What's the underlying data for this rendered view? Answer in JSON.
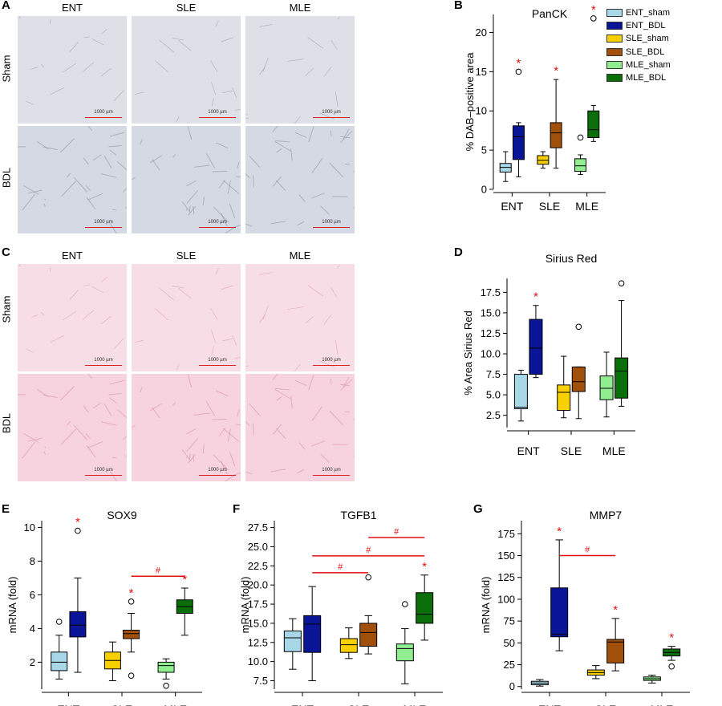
{
  "panel_labels": [
    "A",
    "B",
    "C",
    "D",
    "E",
    "F",
    "G"
  ],
  "histology_A": {
    "columns": [
      "ENT",
      "SLE",
      "MLE"
    ],
    "rows": [
      "Sham",
      "BDL"
    ],
    "scale_text": "1000 µm",
    "colors": {
      "sham": "#dde0e6",
      "bdl": "#d5d9e3"
    }
  },
  "histology_C": {
    "columns": [
      "ENT",
      "SLE",
      "MLE"
    ],
    "rows": [
      "Sham",
      "BDL"
    ],
    "scale_text": "1000 µm",
    "colors": {
      "sham": "#f7dde6",
      "bdl": "#f6d3df"
    }
  },
  "legend": {
    "items": [
      {
        "label": "ENT_sham",
        "color": "#a8d8e8"
      },
      {
        "label": "ENT_BDL",
        "color": "#0a1496"
      },
      {
        "label": "SLE_sham",
        "color": "#f8d000"
      },
      {
        "label": "SLE_BDL",
        "color": "#a0500a"
      },
      {
        "label": "MLE_sham",
        "color": "#90ee90"
      },
      {
        "label": "MLE_BDL",
        "color": "#0a6e0a"
      }
    ]
  },
  "chart_data": [
    {
      "panel": "B",
      "type": "box",
      "title": "PanCK",
      "ylabel": "% DAB–positive area",
      "categories": [
        "ENT",
        "SLE",
        "MLE"
      ],
      "ylim": [
        0,
        22.3
      ],
      "yticks": [
        0,
        5,
        10,
        15,
        20
      ],
      "boxes": [
        {
          "series": "ENT_sham",
          "min": 1.0,
          "q1": 2.2,
          "median": 2.8,
          "q3": 3.3,
          "max": 4.8,
          "outliers": []
        },
        {
          "series": "ENT_BDL",
          "min": 1.6,
          "q1": 3.8,
          "median": 6.7,
          "q3": 8.1,
          "max": 8.5,
          "outliers": [
            15.0
          ],
          "star": true
        },
        {
          "series": "SLE_sham",
          "min": 2.7,
          "q1": 3.2,
          "median": 3.7,
          "q3": 4.3,
          "max": 4.8,
          "outliers": []
        },
        {
          "series": "SLE_BDL",
          "min": 2.7,
          "q1": 5.3,
          "median": 7.2,
          "q3": 8.5,
          "max": 14.0,
          "outliers": [],
          "star": true
        },
        {
          "series": "MLE_sham",
          "min": 1.9,
          "q1": 2.3,
          "median": 3.0,
          "q3": 3.9,
          "max": 4.4,
          "outliers": [
            6.6
          ]
        },
        {
          "series": "MLE_BDL",
          "min": 6.1,
          "q1": 6.6,
          "median": 7.6,
          "q3": 10.0,
          "max": 10.7,
          "outliers": [
            21.8
          ],
          "star": true
        }
      ],
      "hash_lines": []
    },
    {
      "panel": "D",
      "type": "box",
      "title": "Sirius Red",
      "ylabel": "% Area Sirius Red",
      "categories": [
        "ENT",
        "SLE",
        "MLE"
      ],
      "ylim": [
        1.0,
        19.2
      ],
      "yticks": [
        2.5,
        5.0,
        7.5,
        10.0,
        12.5,
        15.0,
        17.5
      ],
      "boxes": [
        {
          "series": "ENT_sham",
          "min": 1.8,
          "q1": 3.3,
          "median": 3.5,
          "q3": 7.5,
          "max": 8.0,
          "outliers": []
        },
        {
          "series": "ENT_BDL",
          "min": 7.1,
          "q1": 7.5,
          "median": 10.7,
          "q3": 14.2,
          "max": 15.9,
          "outliers": [],
          "star": true
        },
        {
          "series": "SLE_sham",
          "min": 2.2,
          "q1": 3.1,
          "median": 5.3,
          "q3": 6.2,
          "max": 9.7,
          "outliers": []
        },
        {
          "series": "SLE_BDL",
          "min": 2.1,
          "q1": 5.4,
          "median": 6.6,
          "q3": 8.4,
          "max": 8.4,
          "outliers": [
            13.3
          ]
        },
        {
          "series": "MLE_sham",
          "min": 2.3,
          "q1": 4.4,
          "median": 5.8,
          "q3": 7.3,
          "max": 10.2,
          "outliers": []
        },
        {
          "series": "MLE_BDL",
          "min": 3.6,
          "q1": 4.6,
          "median": 7.9,
          "q3": 9.5,
          "max": 16.5,
          "outliers": [
            18.6
          ]
        }
      ],
      "hash_lines": []
    },
    {
      "panel": "E",
      "type": "box",
      "title": "SOX9",
      "ylabel": "mRNA (fold)",
      "categories": [
        "ENT",
        "SLE",
        "MLE"
      ],
      "ylim": [
        0.4,
        10.4
      ],
      "yticks": [
        2,
        4,
        6,
        8,
        10
      ],
      "boxes": [
        {
          "series": "ENT_sham",
          "min": 1.0,
          "q1": 1.5,
          "median": 2.0,
          "q3": 2.6,
          "max": 3.6,
          "outliers": [
            4.4
          ]
        },
        {
          "series": "ENT_BDL",
          "min": 1.4,
          "q1": 3.5,
          "median": 4.2,
          "q3": 5.0,
          "max": 7.0,
          "outliers": [
            9.8
          ],
          "star": true
        },
        {
          "series": "SLE_sham",
          "min": 0.9,
          "q1": 1.6,
          "median": 2.1,
          "q3": 2.6,
          "max": 3.2,
          "outliers": []
        },
        {
          "series": "SLE_BDL",
          "min": 2.6,
          "q1": 3.4,
          "median": 3.7,
          "q3": 3.9,
          "max": 4.9,
          "outliers": [
            5.6,
            1.2
          ],
          "star": true
        },
        {
          "series": "MLE_sham",
          "min": 1.0,
          "q1": 1.4,
          "median": 1.8,
          "q3": 2.0,
          "max": 2.2,
          "outliers": [
            0.6
          ]
        },
        {
          "series": "MLE_BDL",
          "min": 3.6,
          "q1": 4.9,
          "median": 5.3,
          "q3": 5.7,
          "max": 6.4,
          "outliers": [],
          "star": true
        }
      ],
      "hash_lines": [
        {
          "from": 3,
          "to": 5,
          "y": 7.1,
          "label": "#"
        }
      ]
    },
    {
      "panel": "F",
      "type": "box",
      "title": "TGFB1",
      "ylabel": "mRNA (fold)",
      "categories": [
        "ENT",
        "SLE",
        "MLE"
      ],
      "ylim": [
        6.4,
        28.4
      ],
      "yticks": [
        7.5,
        10.0,
        12.5,
        15.0,
        17.5,
        20.0,
        22.5,
        25.0,
        27.5
      ],
      "boxes": [
        {
          "series": "ENT_sham",
          "min": 9.0,
          "q1": 11.3,
          "median": 13.1,
          "q3": 14.0,
          "max": 15.6,
          "outliers": []
        },
        {
          "series": "ENT_BDL",
          "min": 7.5,
          "q1": 11.2,
          "median": 14.9,
          "q3": 16.0,
          "max": 19.8,
          "outliers": []
        },
        {
          "series": "SLE_sham",
          "min": 10.4,
          "q1": 11.2,
          "median": 12.2,
          "q3": 13.0,
          "max": 14.4,
          "outliers": []
        },
        {
          "series": "SLE_BDL",
          "min": 11.0,
          "q1": 12.0,
          "median": 13.8,
          "q3": 15.0,
          "max": 16.0,
          "outliers": [
            21.0
          ]
        },
        {
          "series": "MLE_sham",
          "min": 7.1,
          "q1": 10.1,
          "median": 11.7,
          "q3": 12.3,
          "max": 14.3,
          "outliers": [
            17.5
          ]
        },
        {
          "series": "MLE_BDL",
          "min": 12.8,
          "q1": 15.0,
          "median": 16.2,
          "q3": 19.0,
          "max": 21.3,
          "outliers": [],
          "star": true
        }
      ],
      "hash_lines": [
        {
          "from": 3,
          "to": 5,
          "y": 26.2,
          "label": "#"
        },
        {
          "from": 1,
          "to": 5,
          "y": 23.8,
          "label": "#"
        },
        {
          "from": 1,
          "to": 3,
          "y": 21.6,
          "label": "#"
        }
      ]
    },
    {
      "panel": "G",
      "type": "box",
      "title": "MMP7",
      "ylabel": "mRNA (fold)",
      "categories": [
        "ENT",
        "SLE",
        "MLE"
      ],
      "ylim": [
        -3,
        190
      ],
      "yticks": [
        0,
        25,
        50,
        75,
        100,
        125,
        150,
        175
      ],
      "boxes": [
        {
          "series": "ENT_sham",
          "min": 0.5,
          "q1": 2.0,
          "median": 4.0,
          "q3": 6.0,
          "max": 8.0,
          "outliers": []
        },
        {
          "series": "ENT_BDL",
          "min": 41,
          "q1": 57,
          "median": 60,
          "q3": 113,
          "max": 168,
          "outliers": [],
          "star": true
        },
        {
          "series": "SLE_sham",
          "min": 9,
          "q1": 13,
          "median": 16,
          "q3": 19,
          "max": 24,
          "outliers": []
        },
        {
          "series": "SLE_BDL",
          "min": 18,
          "q1": 27,
          "median": 51,
          "q3": 54,
          "max": 78,
          "outliers": [],
          "star": true
        },
        {
          "series": "MLE_sham",
          "min": 4,
          "q1": 7,
          "median": 9,
          "q3": 11,
          "max": 13,
          "outliers": []
        },
        {
          "series": "MLE_BDL",
          "min": 30,
          "q1": 35,
          "median": 39,
          "q3": 43,
          "max": 46,
          "outliers": [
            23
          ],
          "star": true
        }
      ],
      "hash_lines": [
        {
          "from": 1,
          "to": 3,
          "y": 150,
          "label": "#"
        }
      ]
    }
  ]
}
